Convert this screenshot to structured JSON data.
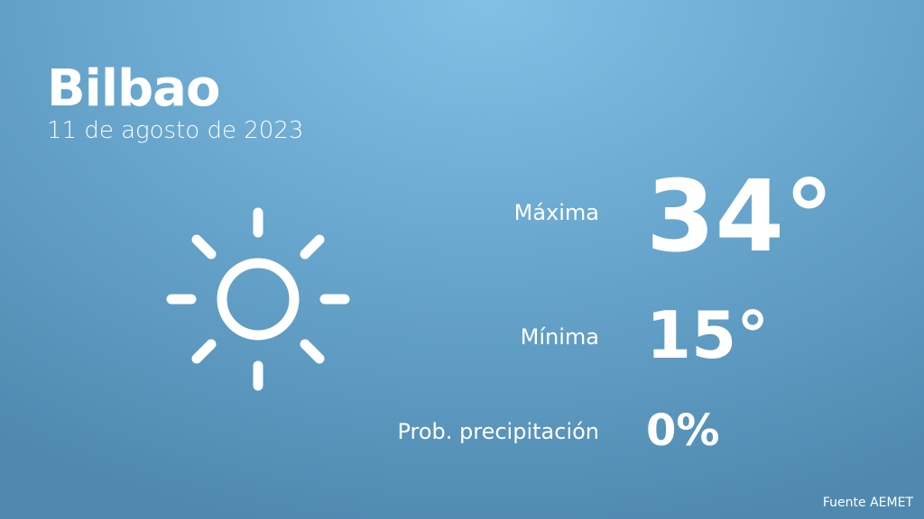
{
  "city": "Bilbao",
  "date": "11 de agosto de 2023",
  "icon": "sun-icon",
  "stats": [
    {
      "label": "Máxima",
      "value": "34°"
    },
    {
      "label": "Mínima",
      "value": "15°"
    },
    {
      "label": "Prob. precipitación",
      "value": "0%"
    }
  ],
  "source": "Fuente AEMET"
}
